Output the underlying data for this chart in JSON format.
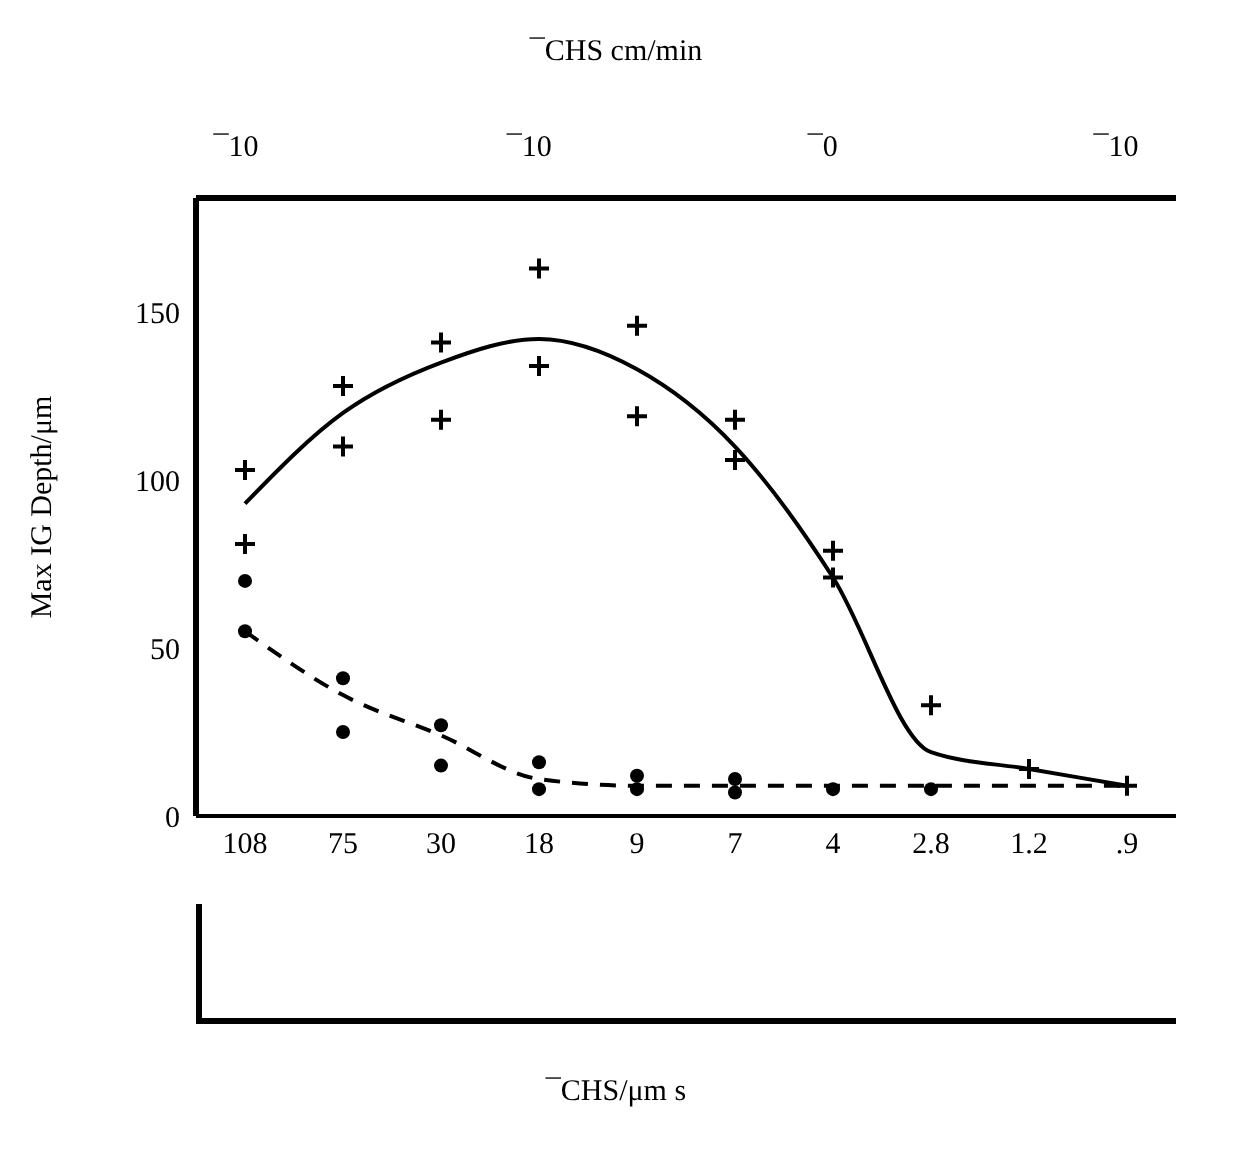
{
  "chart_data": {
    "type": "line",
    "ylabel": "Max IG Depth/μm",
    "categories": [
      "108",
      "75",
      "30",
      "18",
      "9",
      "7",
      "4",
      "2.8",
      "1.2",
      ".9"
    ],
    "ylim": [
      0,
      184
    ],
    "yticks": [
      0,
      50,
      100,
      150
    ],
    "annotations": [
      "¯CHS cm/min",
      "¯10",
      "¯10",
      "¯0",
      "¯10",
      "¯CHS/μm s"
    ],
    "series": [
      {
        "type": "scatter",
        "marker": "cross",
        "color": "#000000",
        "x": [
          "108",
          "108",
          "75",
          "75",
          "30",
          "30",
          "18",
          "18",
          "9",
          "9",
          "7",
          "7",
          "4",
          "4",
          "2.8",
          "1.2",
          ".9"
        ],
        "values": [
          103,
          81,
          128,
          110,
          141,
          118,
          163,
          134,
          146,
          119,
          118,
          106,
          79,
          71,
          33,
          14,
          9
        ]
      },
      {
        "type": "scatter",
        "marker": "circle",
        "color": "#000000",
        "x": [
          "108",
          "108",
          "75",
          "75",
          "30",
          "30",
          "18",
          "18",
          "9",
          "9",
          "7",
          "7",
          "4",
          "2.8"
        ],
        "values": [
          70,
          55,
          41,
          25,
          27,
          15,
          16,
          8,
          12,
          8,
          11,
          7,
          8,
          8
        ]
      },
      {
        "line_style": "solid",
        "marker": "none",
        "color": "#000000",
        "values": [
          93,
          120,
          135,
          142,
          133,
          110,
          71,
          19,
          14,
          9
        ]
      },
      {
        "line_style": "dashed",
        "marker": "none",
        "color": "#000000",
        "values": [
          55,
          36,
          24,
          11,
          9,
          9,
          9,
          9,
          9,
          9
        ]
      }
    ]
  }
}
